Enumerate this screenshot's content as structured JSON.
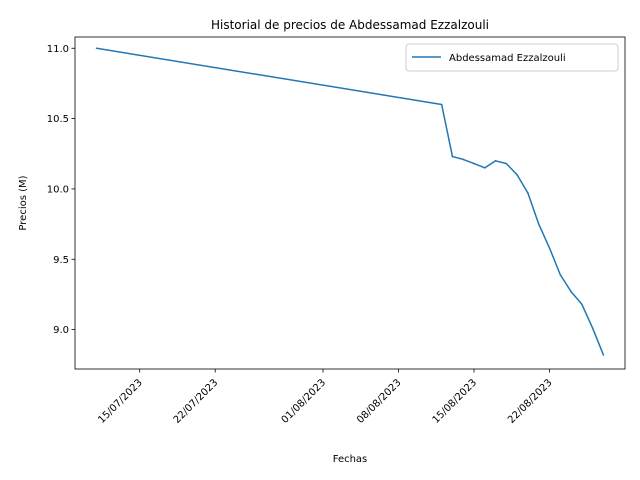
{
  "chart_data": {
    "type": "line",
    "title": "Historial de precios de Abdessamad Ezzalzouli",
    "xlabel": "Fechas",
    "ylabel": "Precios (M)",
    "x_ticks": [
      "15/07/2023",
      "22/07/2023",
      "01/08/2023",
      "08/08/2023",
      "15/08/2023",
      "22/08/2023"
    ],
    "y_ticks": [
      "9.0",
      "9.5",
      "10.0",
      "10.5",
      "11.0"
    ],
    "ylim": [
      8.72,
      11.08
    ],
    "xlim": [
      "2023-07-09",
      "2023-08-29"
    ],
    "grid": false,
    "legend_position": "top-right",
    "series": [
      {
        "name": "Abdessamad Ezzalzouli",
        "color": "#1f77b4",
        "points": [
          {
            "x": "2023-07-11",
            "y": 11.0
          },
          {
            "x": "2023-08-12",
            "y": 10.6
          },
          {
            "x": "2023-08-13",
            "y": 10.23
          },
          {
            "x": "2023-08-14",
            "y": 10.21
          },
          {
            "x": "2023-08-15",
            "y": 10.18
          },
          {
            "x": "2023-08-16",
            "y": 10.15
          },
          {
            "x": "2023-08-17",
            "y": 10.2
          },
          {
            "x": "2023-08-18",
            "y": 10.18
          },
          {
            "x": "2023-08-19",
            "y": 10.1
          },
          {
            "x": "2023-08-20",
            "y": 9.97
          },
          {
            "x": "2023-08-21",
            "y": 9.75
          },
          {
            "x": "2023-08-22",
            "y": 9.58
          },
          {
            "x": "2023-08-23",
            "y": 9.39
          },
          {
            "x": "2023-08-24",
            "y": 9.27
          },
          {
            "x": "2023-08-25",
            "y": 9.18
          },
          {
            "x": "2023-08-26",
            "y": 9.01
          },
          {
            "x": "2023-08-27",
            "y": 8.82
          }
        ]
      }
    ]
  }
}
